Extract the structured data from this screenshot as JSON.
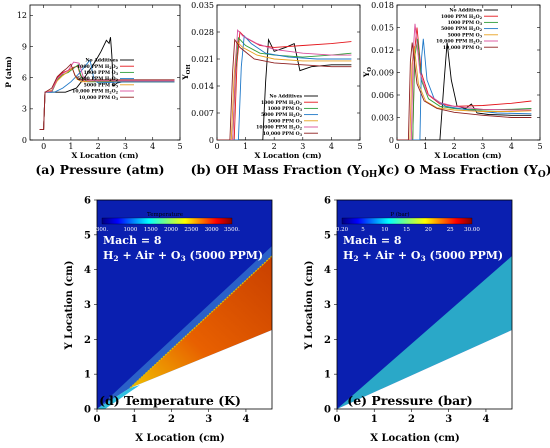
{
  "line_charts": [
    {
      "panel": "a",
      "caption_main": "(a) Pressure (atm)",
      "caption_sub": "",
      "xlabel": "X Location (cm)",
      "ylabel": "P (atm)",
      "xlim": [
        -0.5,
        5
      ],
      "ylim": [
        0,
        13
      ],
      "xticks": [
        0,
        1,
        2,
        3,
        4,
        5
      ],
      "yticks": [
        0,
        3,
        6,
        9,
        12
      ],
      "ytick_labels": [
        "0",
        "3",
        "6",
        "9",
        "12"
      ],
      "legend_pos": "right-middle"
    },
    {
      "panel": "b",
      "caption_main": "(b) OH Mass Fraction (Y",
      "caption_sub": "OH",
      "caption_tail": ")",
      "xlabel": "X Location (cm)",
      "ylabel": "Y",
      "ylabel_sub": "OH",
      "xlim": [
        0,
        5
      ],
      "ylim": [
        0,
        0.035
      ],
      "xticks": [
        0,
        1,
        2,
        3,
        4,
        5
      ],
      "yticks": [
        0,
        0.007,
        0.014,
        0.021,
        0.028,
        0.035
      ],
      "ytick_labels": [
        "0",
        "0.007",
        "0.014",
        "0.021",
        "0.028",
        "0.035"
      ],
      "legend_pos": "bottom-right"
    },
    {
      "panel": "c",
      "caption_main": "(c) O Mass Fraction (Y",
      "caption_sub": "O",
      "caption_tail": ")",
      "xlabel": "X Location (cm)",
      "ylabel": "Y",
      "ylabel_sub": "O",
      "xlim": [
        0,
        5
      ],
      "ylim": [
        0,
        0.018
      ],
      "xticks": [
        0,
        1,
        2,
        3,
        4,
        5
      ],
      "yticks": [
        0,
        0.003,
        0.006,
        0.009,
        0.012,
        0.015,
        0.018
      ],
      "ytick_labels": [
        "0",
        "0.003",
        "0.006",
        "0.009",
        "0.012",
        "0.015",
        "0.018"
      ],
      "legend_pos": "top-right"
    }
  ],
  "legend_series": [
    {
      "name": "No Additives",
      "color": "#000000"
    },
    {
      "name": "1000 PPM H2O2",
      "color": "#e4161c"
    },
    {
      "name": "1000 PPM O3",
      "color": "#2f9e3a"
    },
    {
      "name": "5000 PPM H2O2",
      "color": "#1f78c8"
    },
    {
      "name": "5000 PPM O3",
      "color": "#e8a020"
    },
    {
      "name": "10,000 PPM H2O2",
      "color": "#d94f9c"
    },
    {
      "name": "10,000 PPM O3",
      "color": "#8e2020"
    }
  ],
  "legend_labels": [
    {
      "base": "No Additives",
      "sub": "",
      "tail": ""
    },
    {
      "base": "1000 PPM H",
      "sub": "2",
      "tail": "O",
      "sub2": "2"
    },
    {
      "base": "1000 PPM O",
      "sub": "3",
      "tail": "",
      "sub2": ""
    },
    {
      "base": "5000 PPM H",
      "sub": "2",
      "tail": "O",
      "sub2": "2"
    },
    {
      "base": "5000 PPM O",
      "sub": "3",
      "tail": "",
      "sub2": ""
    },
    {
      "base": "10,000 PPM H",
      "sub": "2",
      "tail": "O",
      "sub2": "2"
    },
    {
      "base": "10,000 PPM O",
      "sub": "3",
      "tail": "",
      "sub2": ""
    }
  ],
  "chart_data": [
    {
      "type": "line",
      "title": "(a) Pressure (atm)",
      "xlabel": "X Location (cm)",
      "ylabel": "P (atm)",
      "xlim": [
        -0.5,
        5
      ],
      "ylim": [
        0,
        13
      ],
      "series": [
        {
          "name": "No Additives",
          "x": [
            -0.15,
            0,
            0.05,
            0.3,
            0.8,
            1.2,
            1.5,
            1.7,
            1.9,
            2.1,
            2.3,
            2.4,
            2.45,
            2.5,
            2.55,
            2.7,
            2.9,
            3.3,
            3.8,
            4.3,
            4.8
          ],
          "y": [
            1,
            1,
            4.6,
            4.6,
            4.6,
            5.0,
            6.0,
            6.8,
            7.6,
            8.5,
            9.6,
            9.3,
            9.9,
            8.2,
            5.2,
            5.5,
            5.6,
            5.6,
            5.6,
            5.6,
            5.6
          ]
        },
        {
          "name": "1000 PPM H2O2",
          "x": [
            -0.15,
            0,
            0.05,
            0.3,
            0.5,
            0.7,
            0.9,
            1.1,
            1.25,
            1.35,
            1.5,
            2,
            3,
            4,
            4.8
          ],
          "y": [
            1,
            1,
            4.6,
            4.7,
            6.0,
            6.5,
            6.7,
            7.0,
            7.1,
            6.2,
            5.6,
            5.7,
            5.7,
            5.7,
            5.7
          ]
        },
        {
          "name": "1000 PPM O3",
          "x": [
            -0.15,
            0,
            0.05,
            0.3,
            0.5,
            0.7,
            0.9,
            1.1,
            1.25,
            1.4,
            1.6,
            2,
            3,
            4,
            4.8
          ],
          "y": [
            1,
            1,
            4.6,
            4.6,
            5.8,
            6.3,
            6.5,
            6.9,
            7.2,
            6.0,
            5.6,
            5.6,
            5.6,
            5.6,
            5.6
          ]
        },
        {
          "name": "5000 PPM H2O2",
          "x": [
            -0.15,
            0,
            0.05,
            0.4,
            0.7,
            1.0,
            1.3,
            1.55,
            1.7,
            1.85,
            2.0,
            3,
            4,
            4.8
          ],
          "y": [
            1,
            1,
            4.6,
            4.6,
            5.0,
            5.6,
            6.4,
            7.2,
            7.7,
            5.8,
            5.5,
            5.6,
            5.6,
            5.6
          ]
        },
        {
          "name": "5000 PPM O3",
          "x": [
            -0.15,
            0,
            0.05,
            0.3,
            0.5,
            0.7,
            0.9,
            1.05,
            1.2,
            1.4,
            2,
            3,
            4,
            4.8
          ],
          "y": [
            1,
            1,
            4.6,
            4.8,
            5.7,
            6.2,
            6.6,
            6.9,
            5.9,
            5.6,
            5.7,
            5.7,
            5.7,
            5.7
          ]
        },
        {
          "name": "10,000 PPM H2O2",
          "x": [
            -0.15,
            0,
            0.05,
            0.3,
            0.5,
            0.7,
            0.9,
            1.1,
            1.3,
            1.45,
            1.6,
            2,
            3,
            4,
            4.8
          ],
          "y": [
            1,
            1,
            4.6,
            4.7,
            5.9,
            6.4,
            6.7,
            7.5,
            7.4,
            6.1,
            5.7,
            5.7,
            5.7,
            5.7,
            5.7
          ]
        },
        {
          "name": "10,000 PPM O3",
          "x": [
            -0.15,
            0,
            0.05,
            0.3,
            0.5,
            0.7,
            0.85,
            1.0,
            1.15,
            1.3,
            2,
            3,
            4,
            4.8
          ],
          "y": [
            1,
            1,
            4.6,
            5.0,
            6.1,
            6.6,
            6.9,
            7.3,
            6.2,
            5.8,
            5.8,
            5.8,
            5.8,
            5.8
          ]
        }
      ]
    },
    {
      "type": "line",
      "title": "(b) OH Mass Fraction (YOH)",
      "xlabel": "X Location (cm)",
      "ylabel": "YOH",
      "xlim": [
        0,
        5
      ],
      "ylim": [
        0,
        0.035
      ],
      "series": [
        {
          "name": "No Additives",
          "x": [
            0,
            1.6,
            1.7,
            1.8,
            2.0,
            2.4,
            2.7,
            2.9,
            3.3,
            4,
            4.7
          ],
          "y": [
            0,
            0,
            0.015,
            0.026,
            0.023,
            0.024,
            0.025,
            0.018,
            0.019,
            0.0195,
            0.0195
          ]
        },
        {
          "name": "1000 PPM H2O2",
          "x": [
            0,
            0.6,
            0.7,
            0.8,
            1.0,
            1.5,
            2,
            3,
            4,
            4.7
          ],
          "y": [
            0,
            0,
            0.02,
            0.028,
            0.0265,
            0.0245,
            0.024,
            0.0245,
            0.025,
            0.0255
          ]
        },
        {
          "name": "1000 PPM O3",
          "x": [
            0,
            0.55,
            0.65,
            0.75,
            1.0,
            1.5,
            2,
            3,
            4,
            4.7
          ],
          "y": [
            0,
            0,
            0.018,
            0.0265,
            0.0245,
            0.0225,
            0.022,
            0.0215,
            0.022,
            0.0225
          ]
        },
        {
          "name": "5000 PPM H2O2",
          "x": [
            0,
            0.75,
            0.85,
            0.95,
            1.2,
            1.7,
            2.5,
            3.5,
            4.7
          ],
          "y": [
            0,
            0,
            0.019,
            0.027,
            0.025,
            0.0225,
            0.0215,
            0.021,
            0.021
          ]
        },
        {
          "name": "5000 PPM O3",
          "x": [
            0,
            0.5,
            0.6,
            0.7,
            0.9,
            1.4,
            2,
            3,
            4,
            4.7
          ],
          "y": [
            0,
            0,
            0.017,
            0.0255,
            0.024,
            0.022,
            0.021,
            0.0205,
            0.0205,
            0.0205
          ]
        },
        {
          "name": "10,000 PPM H2O2",
          "x": [
            0,
            0.55,
            0.65,
            0.72,
            0.9,
            1.4,
            2,
            3,
            4,
            4.7
          ],
          "y": [
            0,
            0,
            0.02,
            0.0285,
            0.027,
            0.025,
            0.0235,
            0.0225,
            0.022,
            0.022
          ]
        },
        {
          "name": "10,000 PPM O3",
          "x": [
            0,
            0.45,
            0.55,
            0.62,
            0.8,
            1.3,
            2,
            3,
            4,
            4.7
          ],
          "y": [
            0,
            0,
            0.018,
            0.026,
            0.024,
            0.021,
            0.02,
            0.0195,
            0.019,
            0.019
          ]
        }
      ]
    },
    {
      "type": "line",
      "title": "(c) O Mass Fraction (YO)",
      "xlabel": "X Location (cm)",
      "ylabel": "YO",
      "xlim": [
        0,
        5
      ],
      "ylim": [
        0,
        0.018
      ],
      "series": [
        {
          "name": "No Additives",
          "x": [
            0,
            1.5,
            1.65,
            1.75,
            1.9,
            2.1,
            2.4,
            2.6,
            2.8,
            3.2,
            4,
            4.7
          ],
          "y": [
            0,
            0,
            0.008,
            0.013,
            0.008,
            0.0045,
            0.0042,
            0.0048,
            0.0036,
            0.0034,
            0.0033,
            0.0033
          ]
        },
        {
          "name": "1000 PPM H2O2",
          "x": [
            0,
            0.55,
            0.62,
            0.7,
            0.85,
            1.1,
            1.5,
            2,
            3,
            4,
            4.7
          ],
          "y": [
            0,
            0,
            0.012,
            0.015,
            0.009,
            0.006,
            0.0048,
            0.0045,
            0.0046,
            0.0049,
            0.0052
          ]
        },
        {
          "name": "1000 PPM O3",
          "x": [
            0,
            0.55,
            0.62,
            0.72,
            0.85,
            1.1,
            1.5,
            2,
            3,
            4,
            4.7
          ],
          "y": [
            0,
            0,
            0.011,
            0.0135,
            0.008,
            0.0055,
            0.0045,
            0.0042,
            0.004,
            0.0041,
            0.0042
          ]
        },
        {
          "name": "5000 PPM H2O2",
          "x": [
            0,
            0.8,
            0.86,
            0.92,
            1.05,
            1.3,
            1.7,
            2.5,
            3.5,
            4.7
          ],
          "y": [
            0,
            0,
            0.011,
            0.0135,
            0.008,
            0.0055,
            0.0045,
            0.004,
            0.0036,
            0.0035
          ]
        },
        {
          "name": "5000 PPM O3",
          "x": [
            0,
            0.45,
            0.52,
            0.6,
            0.75,
            1.0,
            1.4,
            2,
            3,
            4,
            4.7
          ],
          "y": [
            0,
            0,
            0.01,
            0.0125,
            0.0075,
            0.0052,
            0.0043,
            0.004,
            0.0038,
            0.0038,
            0.0039
          ]
        },
        {
          "name": "10,000 PPM H2O2",
          "x": [
            0,
            0.5,
            0.57,
            0.63,
            0.8,
            1.05,
            1.5,
            2,
            3,
            4,
            4.7
          ],
          "y": [
            0,
            0,
            0.012,
            0.0155,
            0.009,
            0.0062,
            0.005,
            0.0045,
            0.0041,
            0.004,
            0.004
          ]
        },
        {
          "name": "10,000 PPM O3",
          "x": [
            0,
            0.4,
            0.47,
            0.53,
            0.7,
            0.95,
            1.4,
            2,
            3,
            4,
            4.7
          ],
          "y": [
            0,
            0,
            0.0105,
            0.013,
            0.0075,
            0.0052,
            0.0042,
            0.0037,
            0.0033,
            0.003,
            0.003
          ]
        }
      ]
    },
    {
      "type": "heatmap",
      "title": "(d) Temperature (K)",
      "xlabel": "X Location (cm)",
      "ylabel": "Y Location (cm)",
      "xlim": [
        0,
        4.7
      ],
      "ylim": [
        0,
        6
      ],
      "colorbar": {
        "label": "Temperature",
        "min": 300,
        "max": 3500,
        "ticks": [
          300,
          1000,
          1500,
          2000,
          2500,
          3000,
          3500
        ],
        "tick_labels": [
          "300.",
          "1000",
          "1500",
          "2000",
          "2500",
          "3000",
          "3500."
        ]
      },
      "annotation_line1": "Mach = 8",
      "annotation_line2": {
        "a": "H",
        "a_sub": "2",
        "b": " + Air + O",
        "b_sub": "3",
        "c": " (5000 PPM)"
      },
      "free_stream_temperature": 300,
      "post_shock_temperature": 900,
      "combustion_temperature": 2900,
      "shock_line": [
        [
          0,
          0
        ],
        [
          4.7,
          4.4
        ]
      ],
      "ignition_x": 0.9
    },
    {
      "type": "heatmap",
      "title": "(e) Pressure (bar)",
      "xlabel": "X Location (cm)",
      "ylabel": "Y Location (cm)",
      "xlim": [
        0,
        4.7
      ],
      "ylim": [
        0,
        6
      ],
      "colorbar": {
        "label": "P (bar)",
        "min": 0.2,
        "max": 30,
        "ticks": [
          0.2,
          5,
          10,
          15,
          20,
          25,
          30
        ],
        "tick_labels": [
          "0.20",
          "5",
          "10",
          "15",
          "20",
          "25",
          "30.00"
        ]
      },
      "annotation_line1": "Mach = 8",
      "annotation_line2": {
        "a": "H",
        "a_sub": "2",
        "b": " + Air + O",
        "b_sub": "3",
        "c": " (5000 PPM)"
      },
      "free_stream_pressure": 1,
      "post_shock_pressure": 6,
      "shock_line": [
        [
          0,
          0
        ],
        [
          4.7,
          4.4
        ]
      ],
      "wedge_line": [
        [
          0,
          0
        ],
        [
          4.7,
          2.3
        ]
      ]
    }
  ]
}
